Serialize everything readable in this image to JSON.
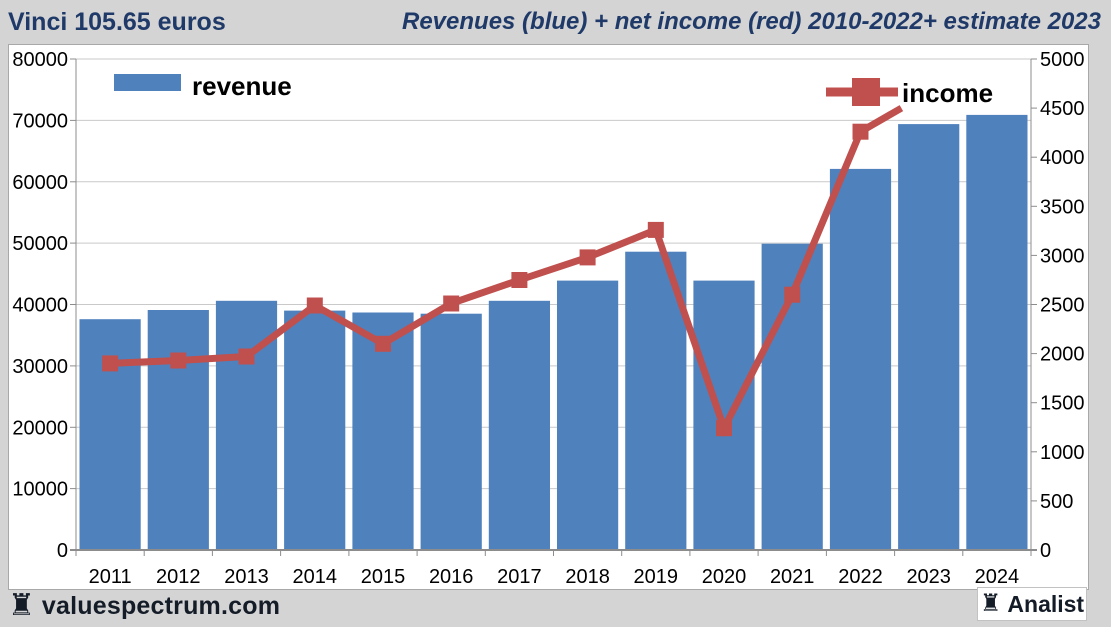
{
  "header": {
    "left_title": "Vinci 105.65 euros",
    "right_title": "Revenues (blue) + net income (red) 2010-2022+ estimate 2023"
  },
  "chart_data": {
    "type": "bar+line",
    "categories": [
      "2011",
      "2012",
      "2013",
      "2014",
      "2015",
      "2016",
      "2017",
      "2018",
      "2019",
      "2020",
      "2021",
      "2022",
      "2023",
      "2024"
    ],
    "series": [
      {
        "name": "revenue",
        "type": "bar",
        "axis": "left",
        "color": "#4f81bd",
        "values": [
          37600,
          39100,
          40600,
          39000,
          38700,
          38500,
          40600,
          43900,
          48600,
          43900,
          49900,
          62100,
          69400,
          70900
        ]
      },
      {
        "name": "income",
        "type": "line",
        "axis": "right",
        "color": "#c0504d",
        "values": [
          1900,
          1930,
          1970,
          2490,
          2100,
          2510,
          2750,
          2980,
          3260,
          1240,
          2600,
          4260
        ],
        "line_end_extension": {
          "value": 4500,
          "x_fraction": 0.6
        }
      }
    ],
    "left_axis": {
      "min": 0,
      "max": 80000,
      "step": 10000
    },
    "right_axis": {
      "min": 0,
      "max": 5000,
      "step": 500
    },
    "legend": {
      "revenue_label": "revenue",
      "income_label": "income"
    },
    "grid": true,
    "colors": {
      "bar_blue": "#4f81bd",
      "line_red": "#c0504d",
      "gridline": "#c9c9c9",
      "axis_line": "#8c8c8c",
      "axis_text": "#000000",
      "plot_background": "#ffffff"
    }
  },
  "footer": {
    "rook_icon": "♜",
    "brand": "valuespectrum.com",
    "badge_icon": "♜",
    "badge": "Analist"
  },
  "page": {
    "background": "#d4d4d4",
    "title_color": "#1f3a68"
  }
}
